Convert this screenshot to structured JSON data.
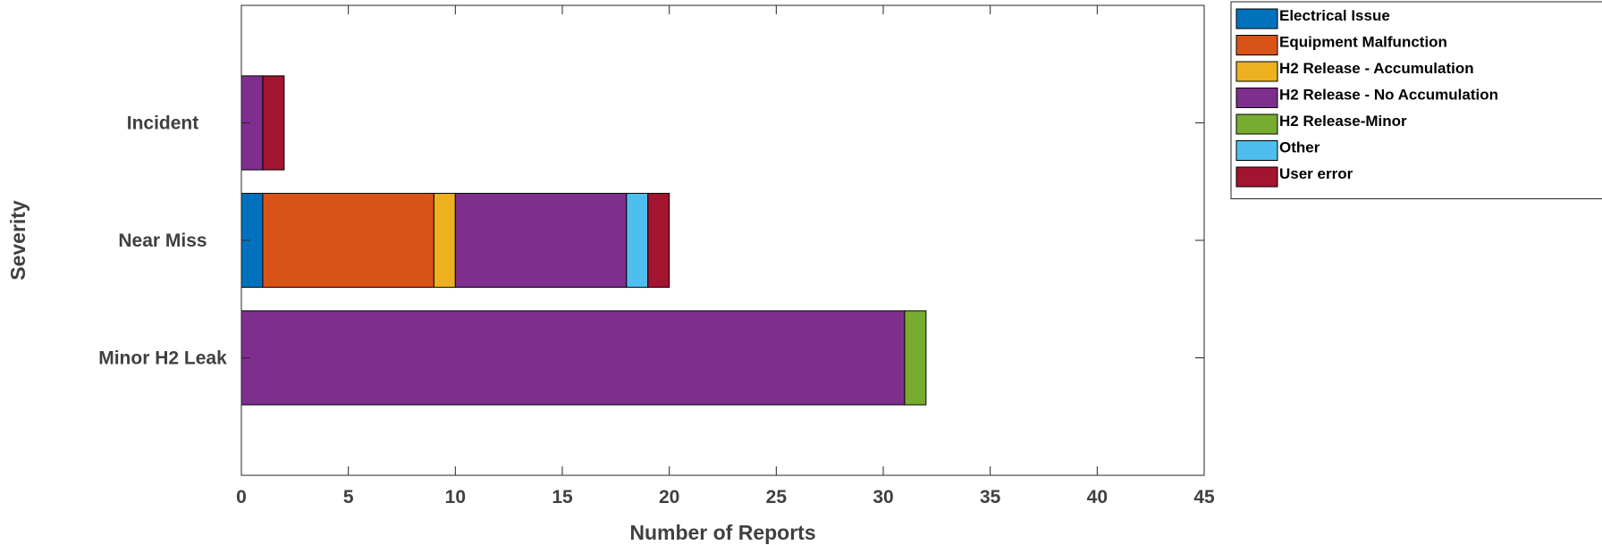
{
  "chart_data": {
    "type": "bar",
    "orientation": "horizontal",
    "stacked": true,
    "categories": [
      "Minor H2 Leak",
      "Near Miss",
      "Incident"
    ],
    "xlabel": "Number of Reports",
    "ylabel": "Severity",
    "xlim": [
      0,
      45
    ],
    "xticks": [
      0,
      5,
      10,
      15,
      20,
      25,
      30,
      35,
      40,
      45
    ],
    "grid": false,
    "legend_position": "top-right",
    "series": [
      {
        "name": "Electrical Issue",
        "color": "#0072BD",
        "values": [
          0,
          1,
          0
        ]
      },
      {
        "name": "Equipment Malfunction",
        "color": "#D95319",
        "values": [
          0,
          8,
          0
        ]
      },
      {
        "name": "H2 Release - Accumulation",
        "color": "#EDB120",
        "values": [
          0,
          1,
          0
        ]
      },
      {
        "name": "H2 Release - No Accumulation",
        "color": "#7E2F8E",
        "values": [
          31,
          8,
          1
        ]
      },
      {
        "name": "H2 Release-Minor",
        "color": "#77AC30",
        "values": [
          1,
          0,
          0
        ]
      },
      {
        "name": "Other",
        "color": "#4DBEEE",
        "values": [
          0,
          1,
          0
        ]
      },
      {
        "name": "User error",
        "color": "#A2142F",
        "values": [
          0,
          1,
          1
        ]
      }
    ]
  }
}
